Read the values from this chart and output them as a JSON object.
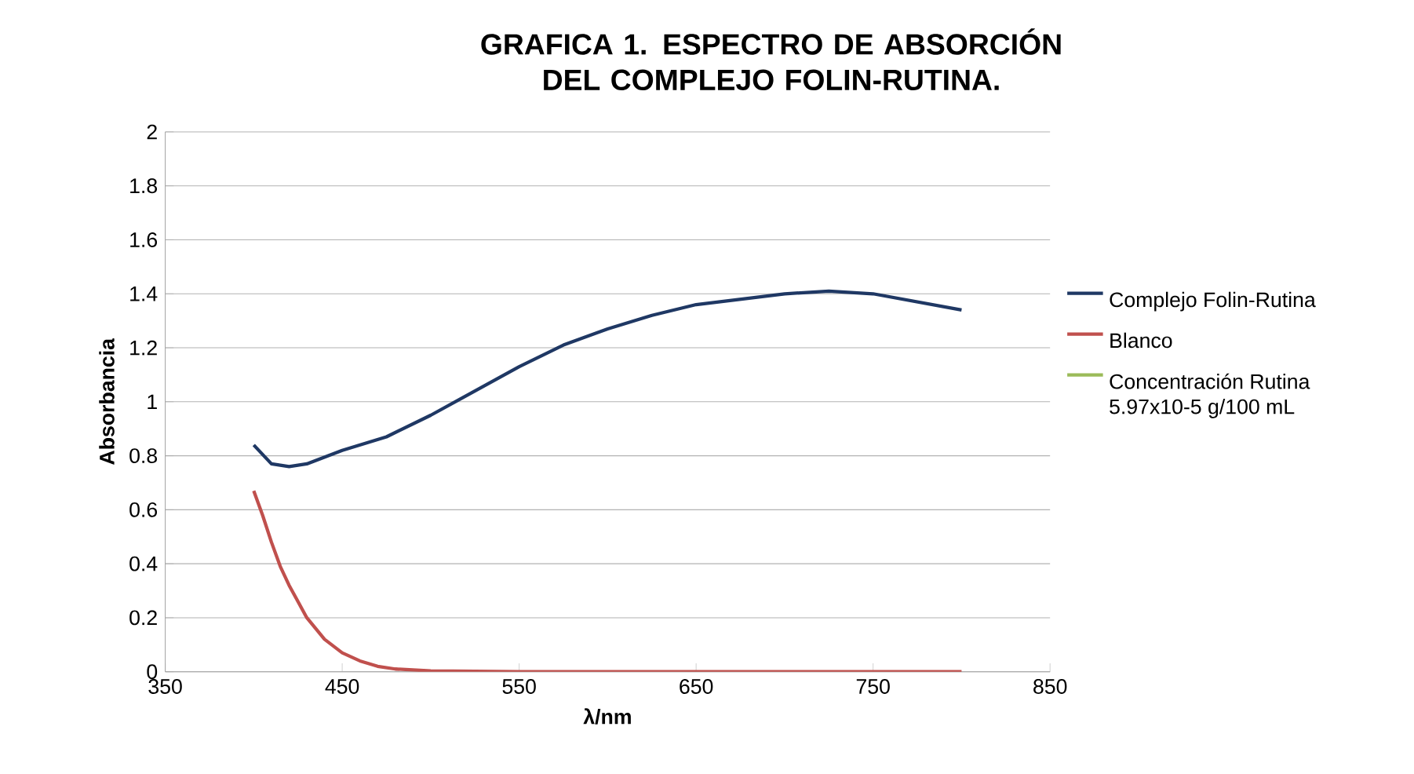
{
  "chart_data": {
    "type": "line",
    "title": "GRAFICA 1. ESPECTRO DE ABSORCIÓN DEL COMPLEJO FOLIN-RUTINA.",
    "xlabel": "λ/nm",
    "ylabel": "Absorbancia",
    "xlim": [
      350,
      850
    ],
    "xticks": [
      350,
      450,
      550,
      650,
      750,
      850
    ],
    "ylim": [
      0,
      2
    ],
    "yticks": [
      0,
      0.2,
      0.4,
      0.6,
      0.8,
      1,
      1.2,
      1.4,
      1.6,
      1.8,
      2
    ],
    "grid": "y",
    "legend": "right",
    "marker": "none",
    "line_style": "solid",
    "x": [
      400,
      410,
      420,
      430,
      450,
      475,
      500,
      525,
      550,
      575,
      600,
      625,
      650,
      675,
      700,
      725,
      750,
      775,
      800
    ],
    "series": [
      {
        "name": "Complejo Folin-Rutina",
        "color": "#1f3864",
        "values": [
          0.84,
          0.77,
          0.76,
          0.77,
          0.82,
          0.87,
          0.95,
          1.04,
          1.13,
          1.21,
          1.27,
          1.32,
          1.36,
          1.38,
          1.4,
          1.41,
          1.4,
          1.37,
          1.34
        ]
      },
      {
        "name": "Blanco",
        "color": "#c0504d",
        "x": [
          400,
          405,
          410,
          415,
          420,
          430,
          440,
          450,
          460,
          470,
          480,
          500,
          550,
          600,
          700,
          800
        ],
        "values": [
          0.67,
          0.58,
          0.48,
          0.39,
          0.32,
          0.2,
          0.12,
          0.07,
          0.04,
          0.02,
          0.01,
          0.003,
          0,
          0,
          0,
          0
        ]
      },
      {
        "name": "Concentración Rutina 5.97x10-5 g/100 mL",
        "color": "#9bbb59",
        "values": [
          null,
          null,
          null,
          null,
          null,
          null,
          null,
          null,
          null,
          null,
          null,
          null,
          null,
          null,
          null,
          null,
          null,
          null,
          null
        ]
      }
    ]
  }
}
